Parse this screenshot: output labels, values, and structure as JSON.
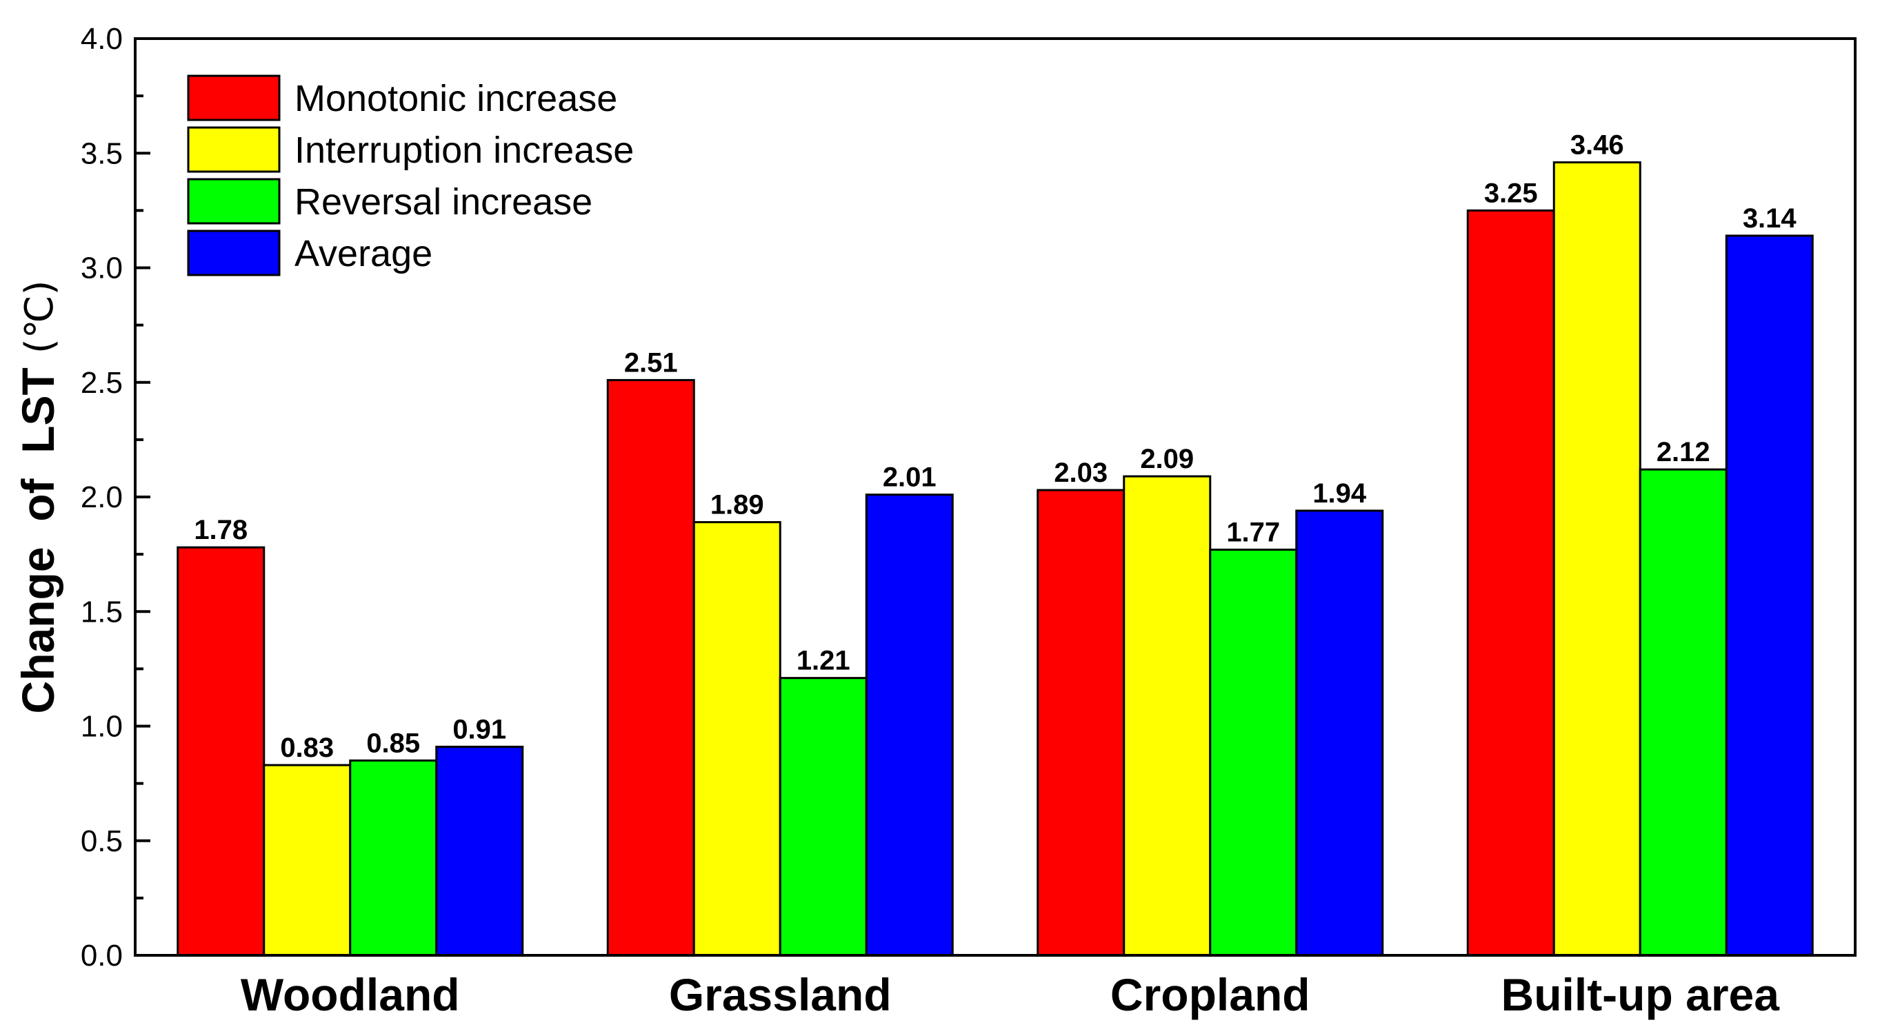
{
  "chart_data": {
    "type": "bar",
    "title": "",
    "xlabel": "",
    "ylabel": "Change  of  LST",
    "ylabel_unit": "(℃)",
    "ylim": [
      0,
      4.0
    ],
    "yticks": [
      0.0,
      0.5,
      1.0,
      1.5,
      2.0,
      2.5,
      3.0,
      3.5,
      4.0
    ],
    "ytick_labels": [
      "0.0",
      "0.5",
      "1.0",
      "1.5",
      "2.0",
      "2.5",
      "3.0",
      "3.5",
      "4.0"
    ],
    "grid": false,
    "legend_position": "top-left",
    "categories": [
      "Woodland",
      "Grassland",
      "Cropland",
      "Built-up area"
    ],
    "series": [
      {
        "name": "Monotonic increase",
        "color": "#ff0000",
        "values": [
          1.78,
          2.51,
          2.03,
          3.25
        ],
        "labels": [
          "1.78",
          "2.51",
          "2.03",
          "3.25"
        ]
      },
      {
        "name": "Interruption increase",
        "color": "#ffff00",
        "values": [
          0.83,
          1.89,
          2.09,
          3.46
        ],
        "labels": [
          "0.83",
          "1.89",
          "2.09",
          "3.46"
        ]
      },
      {
        "name": "Reversal increase",
        "color": "#00ff00",
        "values": [
          0.85,
          1.21,
          1.77,
          2.12
        ],
        "labels": [
          "0.85",
          "1.21",
          "1.77",
          "2.12"
        ]
      },
      {
        "name": "Average",
        "color": "#0000ff",
        "values": [
          0.91,
          2.01,
          1.94,
          3.14
        ],
        "labels": [
          "0.91",
          "2.01",
          "1.94",
          "3.14"
        ]
      }
    ]
  }
}
